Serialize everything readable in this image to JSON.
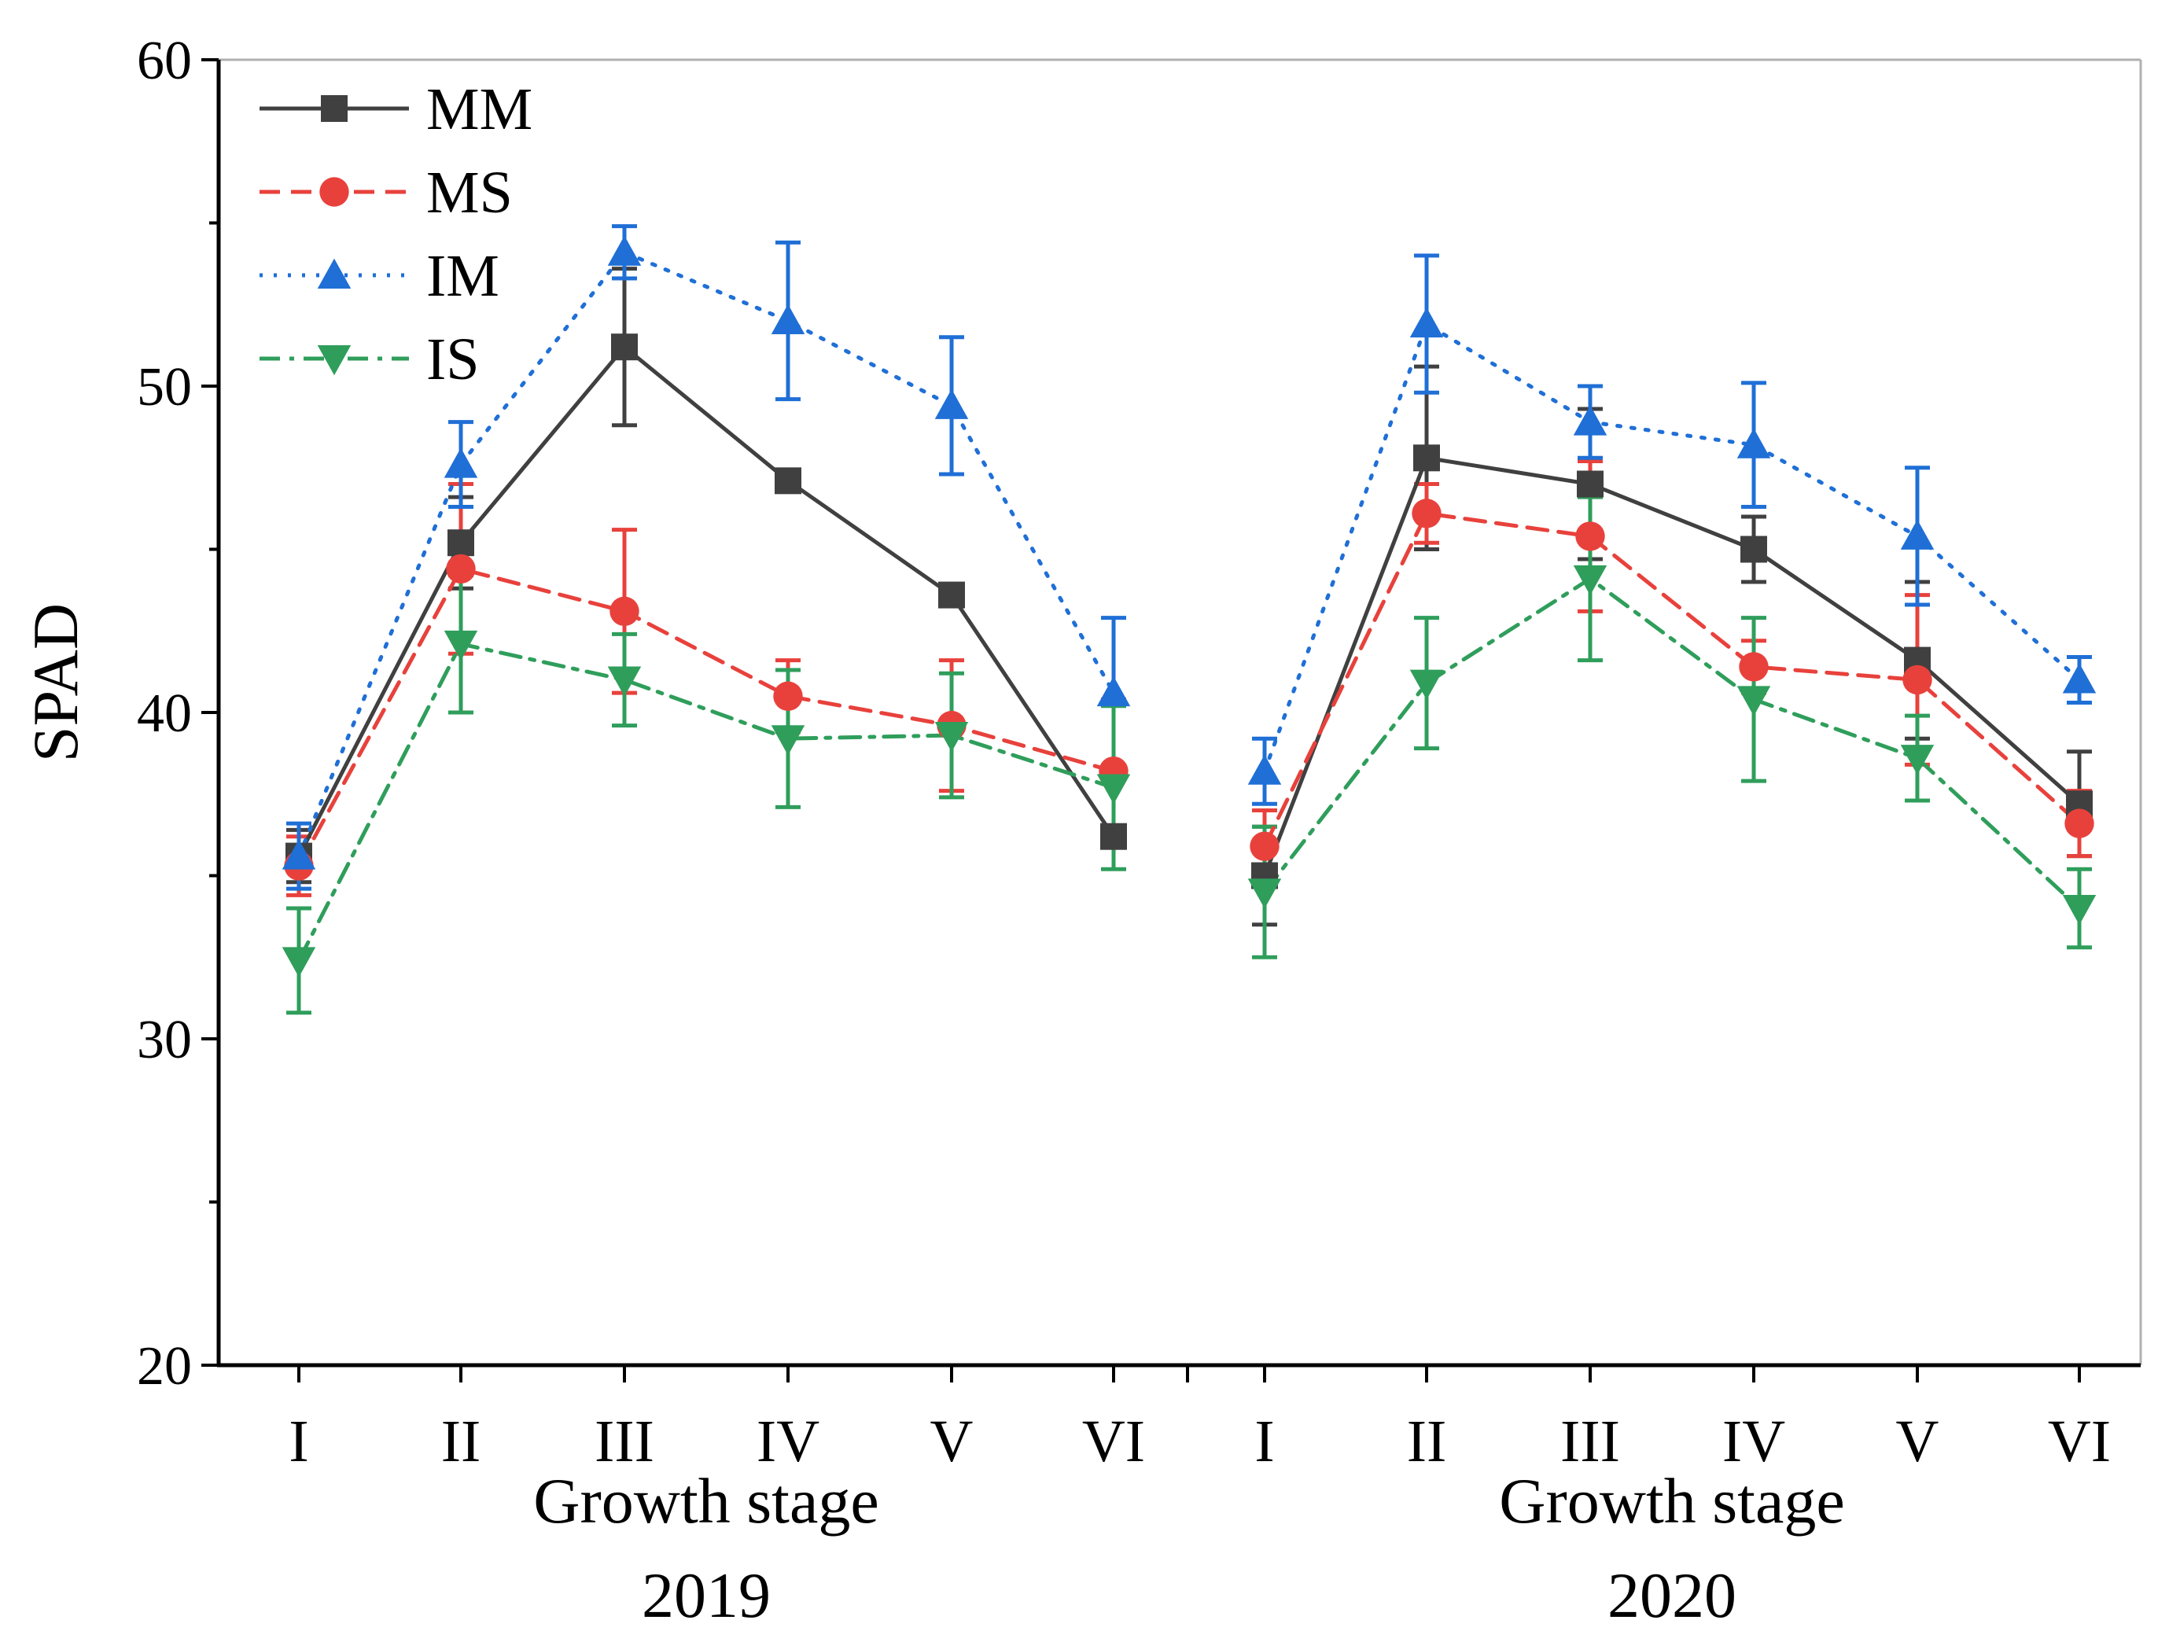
{
  "chart_data": {
    "type": "line",
    "ylabel": "SPAD",
    "ylim": [
      20,
      60
    ],
    "yticks": [
      20,
      30,
      40,
      50,
      60
    ],
    "groups": [
      {
        "xlabel": "Growth stage",
        "year": "2019",
        "categories": [
          "I",
          "II",
          "III",
          "IV",
          "V",
          "VI"
        ]
      },
      {
        "xlabel": "Growth stage",
        "year": "2020",
        "categories": [
          "I",
          "II",
          "III",
          "IV",
          "V",
          "VI"
        ]
      }
    ],
    "legend_position": "top-left",
    "series": [
      {
        "name": "MM",
        "color": "#404040",
        "dash": "solid",
        "marker": "square",
        "values": [
          35.6,
          45.2,
          51.2,
          47.1,
          43.6,
          36.2,
          35.0,
          47.8,
          47.0,
          45.0,
          41.6,
          37.2
        ],
        "errors": [
          0.8,
          1.4,
          2.4,
          0.3,
          0.3,
          0.3,
          1.5,
          2.8,
          2.3,
          1.0,
          2.4,
          1.6
        ]
      },
      {
        "name": "MS",
        "color": "#e8413c",
        "dash": "dash",
        "marker": "circle",
        "values": [
          35.3,
          44.4,
          43.1,
          40.5,
          39.6,
          38.2,
          35.9,
          46.1,
          45.4,
          41.4,
          41.0,
          36.6
        ],
        "errors": [
          0.9,
          2.6,
          2.5,
          1.1,
          2.0,
          2.2,
          1.1,
          0.9,
          2.3,
          0.8,
          2.6,
          1.0
        ]
      },
      {
        "name": "IM",
        "color": "#1f6fd6",
        "dash": "dot",
        "marker": "triangle-up",
        "values": [
          35.6,
          47.6,
          54.1,
          52.0,
          49.4,
          40.6,
          38.2,
          51.9,
          48.9,
          48.2,
          45.4,
          41.0
        ],
        "errors": [
          1.0,
          1.3,
          0.8,
          2.4,
          2.1,
          2.3,
          1.0,
          2.1,
          1.1,
          1.9,
          2.1,
          0.7
        ]
      },
      {
        "name": "IS",
        "color": "#2f9e5b",
        "dash": "dashdot",
        "marker": "triangle-down",
        "values": [
          32.4,
          42.1,
          41.0,
          39.2,
          39.3,
          37.7,
          34.5,
          40.9,
          44.1,
          40.4,
          38.6,
          34.0
        ],
        "errors": [
          1.6,
          2.1,
          1.4,
          2.1,
          1.9,
          2.5,
          2.0,
          2.0,
          2.5,
          2.5,
          1.3,
          1.2
        ]
      }
    ]
  }
}
